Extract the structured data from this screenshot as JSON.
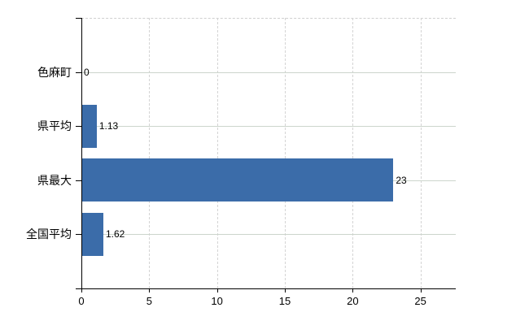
{
  "chart": {
    "background_color": "#ffffff",
    "bar_color": "#3b6ca9",
    "axis_color": "#000000",
    "grid_horizontal_color": "#ccd5cc",
    "grid_vertical_color": "#d4d4d4",
    "plot_border_color": "#cfcfcf",
    "label_color": "#000000"
  },
  "chart_data": {
    "type": "bar",
    "orientation": "horizontal",
    "title": "",
    "xlabel": "",
    "ylabel": "",
    "categories": [
      "色麻町",
      "県平均",
      "県最大",
      "全国平均"
    ],
    "values": [
      0,
      1.13,
      23,
      1.62
    ],
    "value_labels": [
      "0",
      "1.13",
      "23",
      "1.62"
    ],
    "xticks": [
      0,
      5,
      10,
      15,
      20,
      25
    ],
    "xtick_labels": [
      "0",
      "5",
      "10",
      "15",
      "20",
      "25"
    ],
    "xlim": [
      0,
      27.6
    ],
    "grid": true,
    "legend": false
  }
}
